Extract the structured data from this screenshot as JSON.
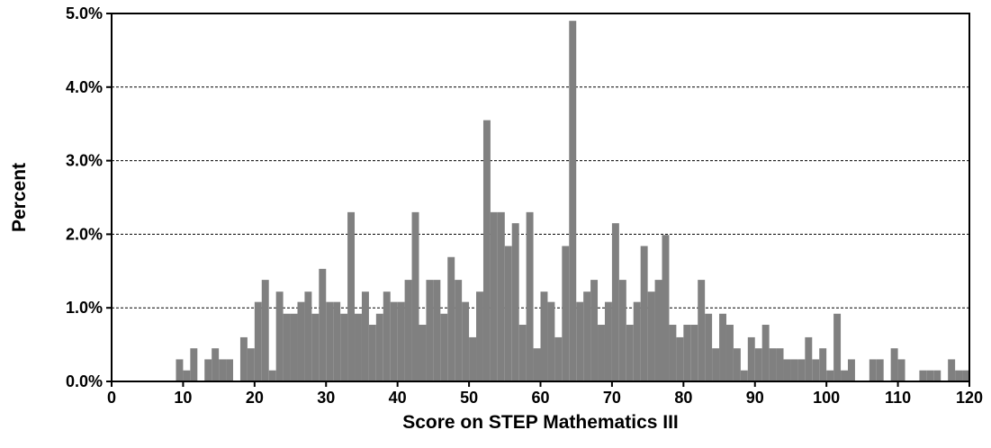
{
  "chart_data": {
    "type": "bar",
    "xlabel": "Score on STEP Mathematics III",
    "ylabel": "Percent",
    "xlim": [
      0,
      120
    ],
    "ylim": [
      0,
      5.0
    ],
    "x_ticks": [
      0,
      10,
      20,
      30,
      40,
      50,
      60,
      70,
      80,
      90,
      100,
      110,
      120
    ],
    "x_tick_labels": [
      "0",
      "10",
      "20",
      "30",
      "40",
      "50",
      "60",
      "70",
      "80",
      "90",
      "100",
      "110",
      "120"
    ],
    "y_ticks": [
      0,
      1,
      2,
      3,
      4,
      5
    ],
    "y_tick_labels": [
      "0.0%",
      "1.0%",
      "2.0%",
      "3.0%",
      "4.0%",
      "5.0%"
    ],
    "grid": "horizontal dashed",
    "bar_color": "#808080",
    "x": [
      0,
      1,
      2,
      3,
      4,
      5,
      6,
      7,
      8,
      9,
      10,
      11,
      12,
      13,
      14,
      15,
      16,
      17,
      18,
      19,
      20,
      21,
      22,
      23,
      24,
      25,
      26,
      27,
      28,
      29,
      30,
      31,
      32,
      33,
      34,
      35,
      36,
      37,
      38,
      39,
      40,
      41,
      42,
      43,
      44,
      45,
      46,
      47,
      48,
      49,
      50,
      51,
      52,
      53,
      54,
      55,
      56,
      57,
      58,
      59,
      60,
      61,
      62,
      63,
      64,
      65,
      66,
      67,
      68,
      69,
      70,
      71,
      72,
      73,
      74,
      75,
      76,
      77,
      78,
      79,
      80,
      81,
      82,
      83,
      84,
      85,
      86,
      87,
      88,
      89,
      90,
      91,
      92,
      93,
      94,
      95,
      96,
      97,
      98,
      99,
      100,
      101,
      102,
      103,
      104,
      105,
      106,
      107,
      108,
      109,
      110,
      111,
      112,
      113,
      114,
      115,
      116,
      117,
      118,
      119
    ],
    "values": [
      0,
      0,
      0,
      0,
      0,
      0,
      0,
      0,
      0,
      0.3,
      0.15,
      0.45,
      0,
      0.3,
      0.45,
      0.3,
      0.3,
      0,
      0.6,
      0.45,
      1.08,
      1.38,
      0.15,
      1.22,
      0.92,
      0.92,
      1.08,
      1.22,
      0.92,
      1.53,
      1.08,
      1.08,
      0.92,
      2.3,
      0.92,
      1.22,
      0.77,
      0.92,
      1.22,
      1.08,
      1.08,
      1.38,
      2.3,
      0.77,
      1.38,
      1.38,
      0.92,
      1.69,
      1.38,
      1.08,
      0.6,
      1.22,
      3.55,
      2.3,
      2.3,
      1.84,
      2.15,
      0.77,
      2.3,
      0.45,
      1.22,
      1.08,
      0.6,
      1.84,
      4.9,
      1.08,
      1.22,
      1.38,
      0.77,
      1.08,
      2.15,
      1.38,
      0.77,
      1.08,
      1.84,
      1.22,
      1.38,
      1.99,
      0.77,
      0.6,
      0.77,
      0.77,
      1.38,
      0.92,
      0.45,
      0.92,
      0.77,
      0.45,
      0.15,
      0.6,
      0.45,
      0.77,
      0.45,
      0.45,
      0.3,
      0.3,
      0.3,
      0.6,
      0.3,
      0.45,
      0.15,
      0.92,
      0.15,
      0.3,
      0,
      0,
      0.3,
      0.3,
      0,
      0.45,
      0.3,
      0,
      0,
      0.15,
      0.15,
      0.15,
      0,
      0.3,
      0.15,
      0.15
    ]
  }
}
